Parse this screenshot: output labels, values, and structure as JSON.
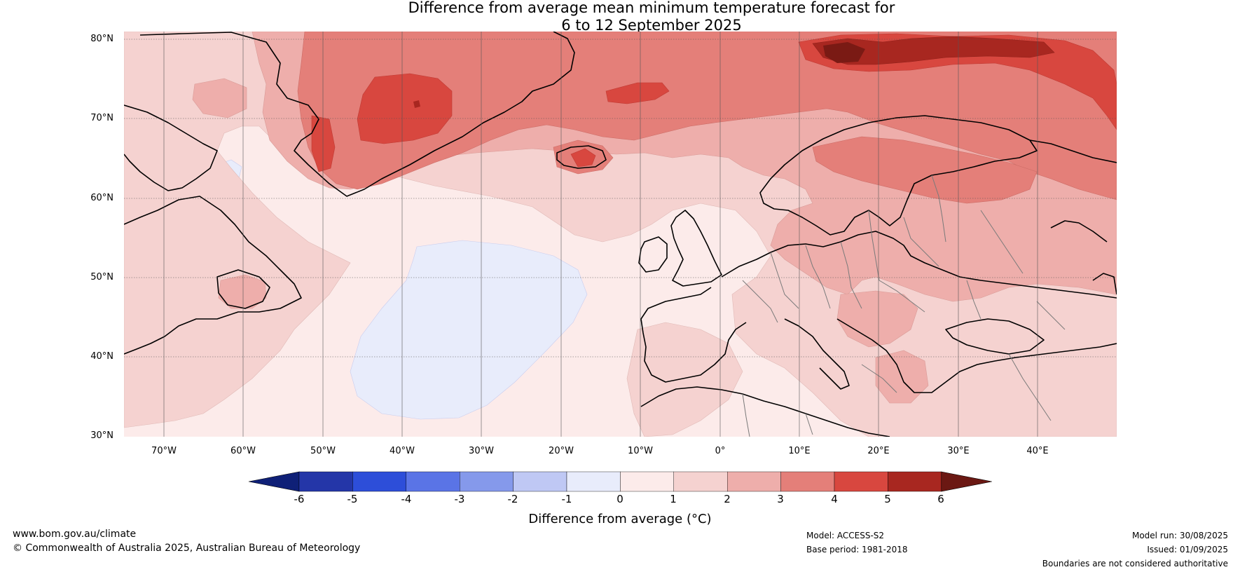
{
  "title": {
    "line1": "Difference from average mean minimum temperature forecast for",
    "line2": "6 to 12 September 2025"
  },
  "map": {
    "lat_labels": [
      "80°N",
      "70°N",
      "60°N",
      "50°N",
      "40°N",
      "30°N"
    ],
    "lon_labels": [
      "70°W",
      "60°W",
      "50°W",
      "40°W",
      "30°W",
      "20°W",
      "10°W",
      "0°",
      "10°E",
      "20°E",
      "30°E",
      "40°E"
    ],
    "lat_range": [
      30,
      81
    ],
    "lon_range": [
      -75,
      50
    ],
    "regions": [
      "Greenland",
      "Canada",
      "North Atlantic Ocean",
      "Iceland",
      "Europe",
      "Scandinavia",
      "Mediterranean"
    ]
  },
  "colorbar": {
    "title": "Difference from average (°C)",
    "ticks": [
      "-6",
      "-5",
      "-4",
      "-3",
      "-2",
      "-1",
      "0",
      "1",
      "2",
      "3",
      "4",
      "5",
      "6"
    ],
    "colors": [
      "#0f2077",
      "#2436a8",
      "#2d4ed9",
      "#5a74e6",
      "#8599eb",
      "#bfc8f4",
      "#e8ecfb",
      "#fcebea",
      "#f5d2d0",
      "#eeaeab",
      "#e47f79",
      "#d8473f",
      "#a82720",
      "#6b1813"
    ]
  },
  "footer": {
    "website": "www.bom.gov.au/climate",
    "copyright": "© Commonwealth of Australia 2025, Australian Bureau of Meteorology",
    "model": "Model: ACCESS-S2",
    "base_period": "Base period: 1981-2018",
    "model_run": "Model run: 30/08/2025",
    "issued": "Issued: 01/09/2025",
    "disclaimer": "Boundaries are not considered authoritative"
  }
}
